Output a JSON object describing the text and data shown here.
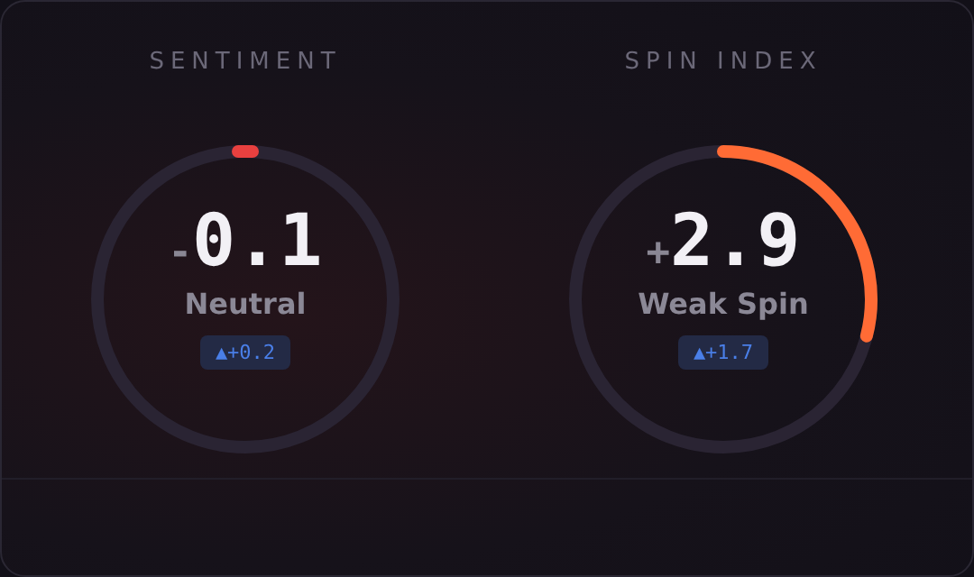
{
  "chart_data": [
    {
      "type": "other",
      "title": "SENTIMENT",
      "values": [
        -0.1
      ],
      "value_labels": [
        "-0.1"
      ],
      "color": "#e8403f",
      "annotations": [
        "Neutral",
        "▲+0.2"
      ]
    },
    {
      "type": "other",
      "title": "SPIN INDEX",
      "values": [
        2.9
      ],
      "value_labels": [
        "+2.9"
      ],
      "color": "#ff6b35",
      "annotations": [
        "Weak Spin",
        "▲+1.7"
      ]
    }
  ]
}
